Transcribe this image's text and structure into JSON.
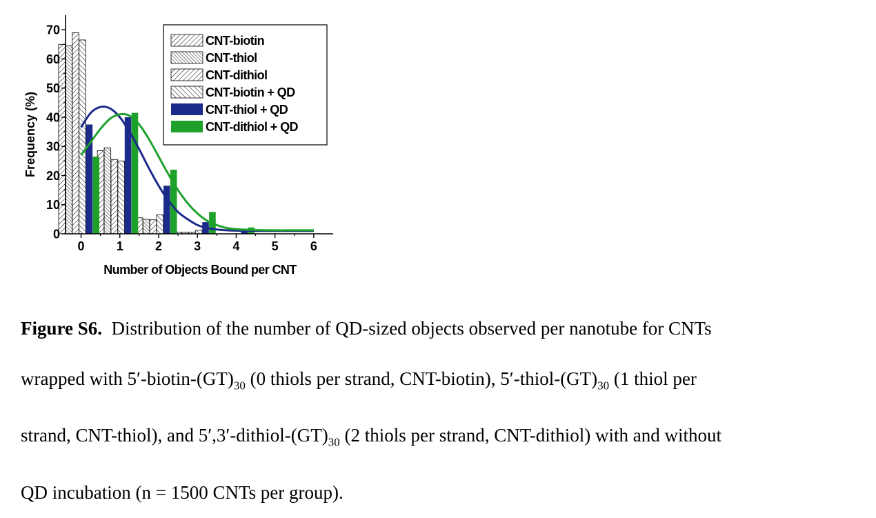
{
  "chart_data": {
    "type": "bar",
    "xlabel": "Number of Objects Bound per CNT",
    "ylabel": "Frequency (%)",
    "categories": [
      "0",
      "1",
      "2",
      "3",
      "4",
      "5",
      "6"
    ],
    "xlim": [
      -0.4,
      6.5
    ],
    "ylim": [
      0,
      75
    ],
    "yticks": [
      0,
      10,
      20,
      30,
      40,
      50,
      60,
      70
    ],
    "grid": false,
    "legend_position": "top-right",
    "series": [
      {
        "name": "CNT-biotin",
        "pattern": "diag-right",
        "color": "#ffffff",
        "x": [
          0,
          1,
          2,
          3
        ],
        "values": [
          65,
          28.5,
          5.5,
          0.6
        ]
      },
      {
        "name": "CNT-thiol",
        "pattern": "diag-left-dense",
        "color": "#ffffff",
        "x": [
          0,
          1,
          2,
          3
        ],
        "values": [
          64.5,
          29.5,
          5,
          0.6
        ]
      },
      {
        "name": "CNT-dithiol",
        "pattern": "diag-right",
        "color": "#ffffff",
        "x": [
          0,
          1,
          2,
          3
        ],
        "values": [
          69,
          25.5,
          4.8,
          0.6
        ]
      },
      {
        "name": "CNT-biotin + QD",
        "pattern": "diag-left",
        "color": "#ffffff",
        "x": [
          0,
          1,
          2,
          3
        ],
        "values": [
          66.5,
          25,
          6.5,
          1.2
        ]
      },
      {
        "name": "CNT-thiol + QD",
        "pattern": "solid",
        "color": "#1c2a8a",
        "x": [
          0,
          1,
          2,
          3,
          4
        ],
        "values": [
          37.5,
          40,
          16.5,
          4,
          1.5
        ]
      },
      {
        "name": "CNT-dithiol + QD",
        "pattern": "solid",
        "color": "#1ea12a",
        "x": [
          0,
          1,
          2,
          3,
          4
        ],
        "values": [
          26.5,
          41.5,
          22,
          7.5,
          2.2
        ]
      }
    ],
    "fits": [
      {
        "series": "CNT-thiol + QD",
        "color": "#1c2a8a",
        "x": [
          0,
          0.25,
          0.5,
          0.75,
          1,
          1.25,
          1.5,
          1.75,
          2,
          2.25,
          2.5,
          2.75,
          3,
          3.25,
          3.5,
          3.75,
          4,
          4.5,
          5,
          5.5,
          6
        ],
        "y": [
          36.5,
          41.5,
          43.5,
          43,
          40,
          35,
          29,
          22.5,
          16.5,
          11.5,
          7.5,
          5,
          3,
          2,
          1.5,
          1.2,
          1.1,
          1,
          1,
          1,
          1
        ]
      },
      {
        "series": "CNT-dithiol + QD",
        "color": "#1ea12a",
        "x": [
          0,
          0.25,
          0.5,
          0.75,
          1,
          1.25,
          1.5,
          1.75,
          2,
          2.25,
          2.5,
          2.75,
          3,
          3.25,
          3.5,
          3.75,
          4,
          4.5,
          5,
          5.5,
          6
        ],
        "y": [
          27,
          31.5,
          36,
          39.5,
          41,
          40.5,
          37.5,
          32.5,
          26.5,
          20.5,
          15,
          10.5,
          7,
          4.5,
          3,
          2,
          1.6,
          1.3,
          1.2,
          1.2,
          1.2
        ]
      }
    ]
  },
  "caption": {
    "label": "Figure S6.",
    "line1": "Distribution of the number of QD-sized objects observed per nanotube for CNTs",
    "line2a": "wrapped with 5′-biotin-(GT)",
    "line2b": " (0 thiols per strand, CNT-biotin), 5′-thiol-(GT)",
    "line2c": " (1 thiol per",
    "line3a": "strand, CNT-thiol), and 5′,3′-dithiol-(GT)",
    "line3b": " (2 thiols per strand, CNT-dithiol) with and without",
    "line4": "QD incubation (n = 1500 CNTs per group).",
    "subscript": "30"
  }
}
